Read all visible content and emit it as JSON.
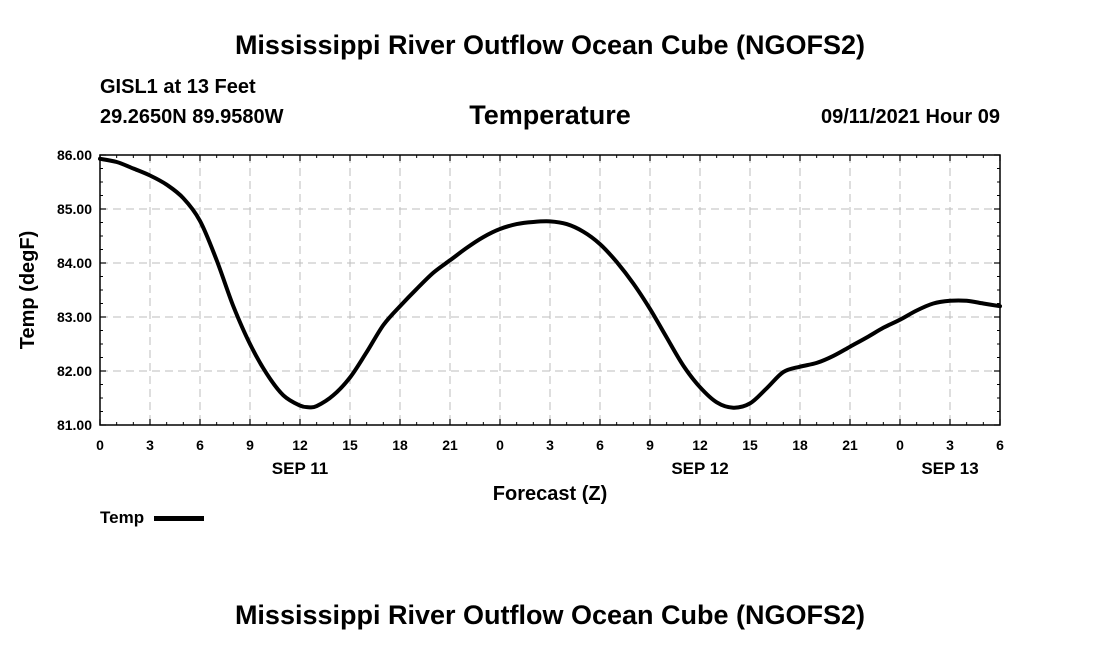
{
  "header": {
    "title": "Mississippi River Outflow Ocean Cube (NGOFS2)",
    "station": "GISL1 at 13 Feet",
    "coordinates": "29.2650N  89.9580W",
    "variable": "Temperature",
    "datetime": "09/11/2021 Hour 09"
  },
  "footer": {
    "title": "Mississippi River Outflow Ocean Cube (NGOFS2)"
  },
  "legend": {
    "label": "Temp"
  },
  "chart_data": {
    "type": "line",
    "title": "Temperature",
    "xlabel": "Forecast (Z)",
    "ylabel": "Temp (degF)",
    "xlim": [
      0,
      54
    ],
    "ylim": [
      81,
      86
    ],
    "grid": true,
    "y_ticks": [
      "81.00",
      "82.00",
      "83.00",
      "84.00",
      "85.00",
      "86.00"
    ],
    "y_tick_values": [
      81,
      82,
      83,
      84,
      85,
      86
    ],
    "x_ticks": [
      0,
      3,
      6,
      9,
      12,
      15,
      18,
      21,
      24,
      27,
      30,
      33,
      36,
      39,
      42,
      45,
      48,
      51,
      54
    ],
    "x_tick_labels": [
      "0",
      "3",
      "6",
      "9",
      "12",
      "15",
      "18",
      "21",
      "0",
      "3",
      "6",
      "9",
      "12",
      "15",
      "18",
      "21",
      "0",
      "3",
      "6"
    ],
    "date_labels": [
      {
        "hour": 12,
        "label": "SEP 11"
      },
      {
        "hour": 36,
        "label": "SEP 12"
      },
      {
        "hour": 51,
        "label": "SEP 13"
      }
    ],
    "legend_position": "bottom-left",
    "series": [
      {
        "name": "Temp",
        "color": "#000000",
        "x": [
          0,
          1,
          2,
          3,
          4,
          5,
          6,
          7,
          8,
          9,
          10,
          11,
          12,
          12.5,
          13,
          14,
          15,
          16,
          17,
          18,
          19,
          20,
          21,
          22,
          23,
          24,
          25,
          26,
          27,
          28,
          29,
          30,
          31,
          32,
          33,
          34,
          35,
          36,
          37,
          38,
          39,
          40,
          41,
          42,
          43,
          44,
          45,
          46,
          47,
          48,
          49,
          50,
          51,
          52,
          53,
          54
        ],
        "y": [
          85.93,
          85.87,
          85.75,
          85.62,
          85.45,
          85.2,
          84.78,
          84.05,
          83.2,
          82.5,
          81.95,
          81.55,
          81.36,
          81.33,
          81.35,
          81.55,
          81.88,
          82.35,
          82.85,
          83.2,
          83.52,
          83.82,
          84.05,
          84.28,
          84.48,
          84.63,
          84.72,
          84.76,
          84.77,
          84.72,
          84.58,
          84.35,
          84.02,
          83.62,
          83.15,
          82.62,
          82.1,
          81.7,
          81.42,
          81.32,
          81.4,
          81.68,
          81.98,
          82.08,
          82.15,
          82.28,
          82.45,
          82.62,
          82.8,
          82.95,
          83.12,
          83.25,
          83.3,
          83.3,
          83.25,
          83.2
        ]
      }
    ]
  }
}
